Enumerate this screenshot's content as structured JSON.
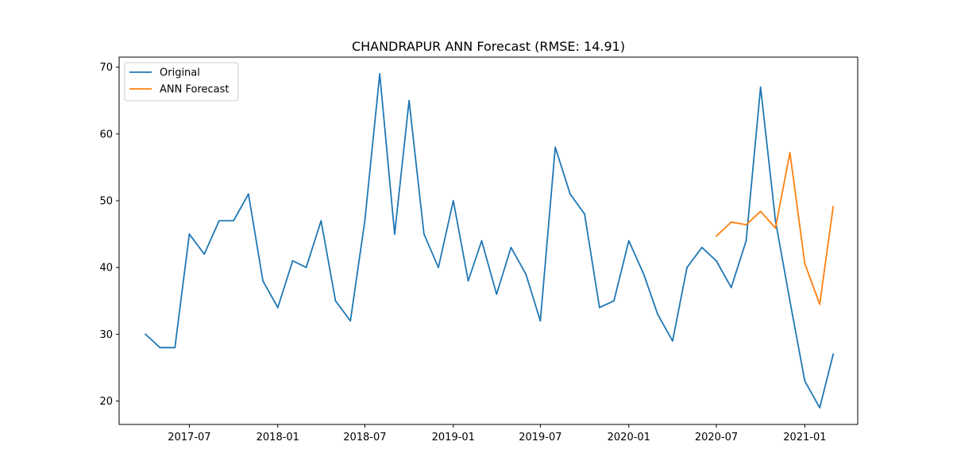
{
  "chart_data": {
    "type": "line",
    "title": "CHANDRAPUR ANN Forecast (RMSE: 14.91)",
    "xlabel": "",
    "ylabel": "",
    "xlim": [
      "2017-02-05",
      "2021-04-21"
    ],
    "ylim": [
      16.5,
      71.5
    ],
    "x_ticks": [
      "2017-07-01",
      "2018-01-01",
      "2018-07-01",
      "2019-01-01",
      "2019-07-01",
      "2020-01-01",
      "2020-07-01",
      "2021-01-01"
    ],
    "x_tick_labels": [
      "2017-07",
      "2018-01",
      "2018-07",
      "2019-01",
      "2019-07",
      "2020-01",
      "2020-07",
      "2021-01"
    ],
    "y_ticks": [
      20,
      30,
      40,
      50,
      60,
      70
    ],
    "y_tick_labels": [
      "20",
      "30",
      "40",
      "50",
      "60",
      "70"
    ],
    "grid": false,
    "legend_position": "top-left",
    "series": [
      {
        "name": "Original",
        "color": "#1f77b4",
        "x": [
          "2017-04-01",
          "2017-05-01",
          "2017-06-01",
          "2017-07-01",
          "2017-08-01",
          "2017-09-01",
          "2017-10-01",
          "2017-11-01",
          "2017-12-01",
          "2018-01-01",
          "2018-02-01",
          "2018-03-01",
          "2018-04-01",
          "2018-05-01",
          "2018-06-01",
          "2018-07-01",
          "2018-08-01",
          "2018-09-01",
          "2018-10-01",
          "2018-11-01",
          "2018-12-01",
          "2019-01-01",
          "2019-02-01",
          "2019-03-01",
          "2019-04-01",
          "2019-05-01",
          "2019-06-01",
          "2019-07-01",
          "2019-08-01",
          "2019-09-01",
          "2019-10-01",
          "2019-11-01",
          "2019-12-01",
          "2020-01-01",
          "2020-02-01",
          "2020-03-01",
          "2020-04-01",
          "2020-05-01",
          "2020-06-01",
          "2020-07-01",
          "2020-08-01",
          "2020-09-01",
          "2020-10-01",
          "2020-11-01",
          "2020-12-01",
          "2021-01-01",
          "2021-02-01",
          "2021-03-01"
        ],
        "values": [
          30,
          28,
          28,
          45,
          42,
          47,
          47,
          51,
          38,
          34,
          41,
          40,
          47,
          35,
          32,
          47,
          69,
          45,
          65,
          45,
          40,
          50,
          38,
          44,
          36,
          43,
          39,
          32,
          58,
          51,
          48,
          34,
          35,
          44,
          39,
          33,
          29,
          40,
          43,
          41,
          37,
          44,
          67,
          47,
          35,
          23,
          19,
          27
        ]
      },
      {
        "name": "ANN Forecast",
        "color": "#ff7f0e",
        "x": [
          "2020-07-01",
          "2020-08-01",
          "2020-09-01",
          "2020-10-01",
          "2020-11-01",
          "2020-12-01",
          "2021-01-01",
          "2021-02-01",
          "2021-03-01"
        ],
        "values": [
          44.7,
          46.8,
          46.4,
          48.4,
          45.9,
          57.2,
          40.6,
          34.5,
          49.1
        ]
      }
    ]
  }
}
